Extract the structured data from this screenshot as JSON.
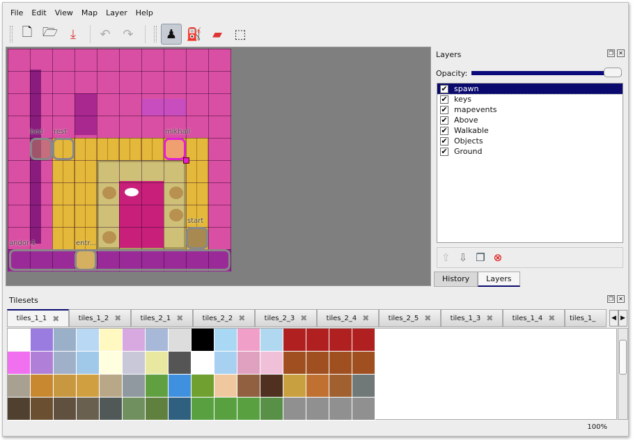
{
  "menu": [
    "File",
    "Edit",
    "View",
    "Map",
    "Layer",
    "Help"
  ],
  "toolbar": [
    {
      "name": "new-icon",
      "glyph": "🗋"
    },
    {
      "name": "open-icon",
      "glyph": "🗁"
    },
    {
      "name": "save-icon",
      "glyph": "⤓"
    },
    {
      "name": "undo-icon",
      "glyph": "↶"
    },
    {
      "name": "redo-icon",
      "glyph": "↷"
    },
    {
      "name": "stamp-brush-icon",
      "glyph": "♟",
      "active": true
    },
    {
      "name": "bucket-fill-icon",
      "glyph": "⛽"
    },
    {
      "name": "eraser-icon",
      "glyph": "▰"
    },
    {
      "name": "rect-select-icon",
      "glyph": "⬚"
    }
  ],
  "map": {
    "objects": [
      "bed",
      "rest",
      "mikhail",
      "start",
      "andor:1",
      "entr..."
    ],
    "highlight_color": "#e020d0"
  },
  "layers_panel": {
    "title": "Layers",
    "opacity_label": "Opacity:",
    "opacity": 1.0,
    "layers": [
      {
        "name": "spawn",
        "visible": true,
        "selected": true
      },
      {
        "name": "keys",
        "visible": true
      },
      {
        "name": "mapevents",
        "visible": true
      },
      {
        "name": "Above",
        "visible": true
      },
      {
        "name": "Walkable",
        "visible": true
      },
      {
        "name": "Objects",
        "visible": true
      },
      {
        "name": "Ground",
        "visible": true
      }
    ],
    "buttons": [
      "raise-layer-icon",
      "lower-layer-icon",
      "duplicate-layer-icon",
      "remove-layer-icon"
    ],
    "tabs": [
      "History",
      "Layers"
    ],
    "active_tab": "Layers"
  },
  "tilesets": {
    "title": "Tilesets",
    "tabs": [
      "tiles_1_1",
      "tiles_1_2",
      "tiles_2_1",
      "tiles_2_2",
      "tiles_2_3",
      "tiles_2_4",
      "tiles_2_5",
      "tiles_1_3",
      "tiles_1_4",
      "tiles_1_"
    ],
    "active_tab": "tiles_1_1"
  },
  "status": {
    "zoom": "100%"
  },
  "colors": {
    "accent": "#0a0a6e",
    "map_bg": "#7f7f7f"
  }
}
